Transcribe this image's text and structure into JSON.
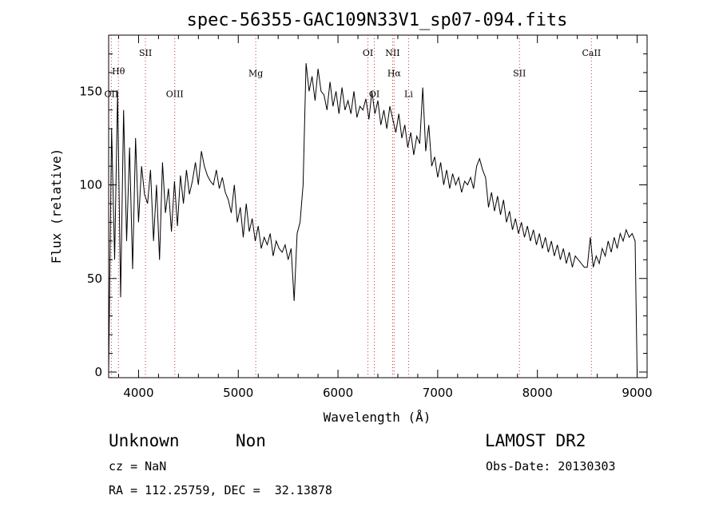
{
  "chart_data": {
    "type": "line",
    "title": "spec-56355-GAC109N33V1_sp07-094.fits",
    "xlabel": "Wavelength (Å)",
    "ylabel": "Flux (relative)",
    "xlim": [
      3700,
      9100
    ],
    "ylim": [
      -3,
      180
    ],
    "xticks": [
      4000,
      5000,
      6000,
      7000,
      8000,
      9000
    ],
    "yticks": [
      0,
      50,
      100,
      150
    ],
    "grid": false,
    "line_color": "#000000",
    "marker_color": "#cc3333",
    "series": [
      {
        "x": [
          3700,
          3730,
          3760,
          3790,
          3820,
          3850,
          3880,
          3910,
          3940,
          3970,
          4000,
          4030,
          4060,
          4090,
          4120,
          4150,
          4180,
          4210,
          4240,
          4270,
          4300,
          4330,
          4360,
          4390,
          4420,
          4450,
          4480,
          4510,
          4540,
          4570,
          4600,
          4630,
          4660,
          4690,
          4720,
          4750,
          4780,
          4810,
          4840,
          4870,
          4900,
          4930,
          4960,
          4990,
          5020,
          5050,
          5080,
          5110,
          5140,
          5170,
          5200,
          5230,
          5260,
          5290,
          5320,
          5350,
          5380,
          5410,
          5440,
          5470,
          5500,
          5530,
          5560,
          5590,
          5620,
          5650,
          5680,
          5710,
          5740,
          5770,
          5800,
          5830,
          5860,
          5890,
          5920,
          5950,
          5980,
          6010,
          6040,
          6070,
          6100,
          6130,
          6160,
          6190,
          6220,
          6250,
          6280,
          6310,
          6340,
          6370,
          6400,
          6430,
          6460,
          6490,
          6520,
          6550,
          6580,
          6610,
          6640,
          6670,
          6700,
          6730,
          6760,
          6790,
          6820,
          6850,
          6880,
          6910,
          6940,
          6970,
          7000,
          7030,
          7060,
          7090,
          7120,
          7150,
          7180,
          7210,
          7240,
          7270,
          7300,
          7330,
          7360,
          7390,
          7420,
          7450,
          7480,
          7510,
          7540,
          7570,
          7600,
          7630,
          7660,
          7690,
          7720,
          7750,
          7780,
          7810,
          7840,
          7870,
          7900,
          7930,
          7960,
          7990,
          8020,
          8050,
          8080,
          8110,
          8140,
          8170,
          8200,
          8230,
          8260,
          8290,
          8320,
          8350,
          8380,
          8410,
          8440,
          8470,
          8500,
          8530,
          8560,
          8590,
          8620,
          8650,
          8680,
          8710,
          8740,
          8770,
          8800,
          8830,
          8860,
          8890,
          8920,
          8950,
          8980,
          9000
        ],
        "y": [
          0,
          130,
          60,
          150,
          40,
          140,
          70,
          120,
          55,
          125,
          80,
          110,
          95,
          90,
          108,
          70,
          100,
          60,
          112,
          85,
          98,
          75,
          102,
          78,
          105,
          90,
          108,
          95,
          102,
          112,
          100,
          118,
          110,
          105,
          102,
          100,
          108,
          98,
          104,
          96,
          92,
          85,
          100,
          80,
          88,
          72,
          90,
          75,
          82,
          70,
          78,
          66,
          72,
          68,
          74,
          62,
          70,
          66,
          64,
          68,
          60,
          66,
          38,
          74,
          80,
          100,
          165,
          150,
          158,
          145,
          162,
          150,
          148,
          140,
          155,
          142,
          150,
          138,
          152,
          140,
          145,
          138,
          150,
          136,
          142,
          140,
          146,
          135,
          150,
          138,
          145,
          132,
          140,
          130,
          142,
          135,
          128,
          138,
          125,
          132,
          120,
          128,
          116,
          126,
          122,
          152,
          118,
          132,
          110,
          115,
          104,
          112,
          100,
          108,
          98,
          106,
          100,
          104,
          96,
          102,
          100,
          104,
          98,
          110,
          114,
          108,
          104,
          88,
          96,
          86,
          94,
          84,
          92,
          80,
          86,
          76,
          82,
          74,
          80,
          72,
          78,
          70,
          76,
          68,
          74,
          66,
          72,
          64,
          70,
          62,
          68,
          60,
          66,
          58,
          64,
          56,
          62,
          60,
          58,
          56,
          56,
          72,
          56,
          62,
          58,
          66,
          62,
          70,
          64,
          72,
          66,
          74,
          70,
          76,
          72,
          74,
          70,
          0
        ]
      }
    ],
    "spectral_lines": [
      {
        "label": "OII",
        "x": 3727,
        "label_y": 147
      },
      {
        "label": "Hθ",
        "x": 3798,
        "label_y": 159
      },
      {
        "label": "SII",
        "x": 4069,
        "label_y": 169
      },
      {
        "label": "OIII",
        "x": 4363,
        "label_y": 147
      },
      {
        "label": "Mg",
        "x": 5175,
        "label_y": 158
      },
      {
        "label": "OI",
        "x": 6300,
        "label_y": 169
      },
      {
        "label": "OI",
        "x": 6364,
        "label_y": 147
      },
      {
        "label": "NII",
        "x": 6548,
        "label_y": 169
      },
      {
        "label": "Hα",
        "x": 6563,
        "label_y": 158
      },
      {
        "label": "Li",
        "x": 6708,
        "label_y": 147
      },
      {
        "label": "SII",
        "x": 7820,
        "label_y": 158
      },
      {
        "label": "CaII",
        "x": 8542,
        "label_y": 169
      }
    ]
  },
  "info": {
    "class": "Unknown",
    "subclass": "Non",
    "survey": "LAMOST DR2",
    "cz": "cz = NaN",
    "obs_date": "Obs-Date: 20130303",
    "coords": "RA = 112.25759, DEC =  32.13878"
  }
}
